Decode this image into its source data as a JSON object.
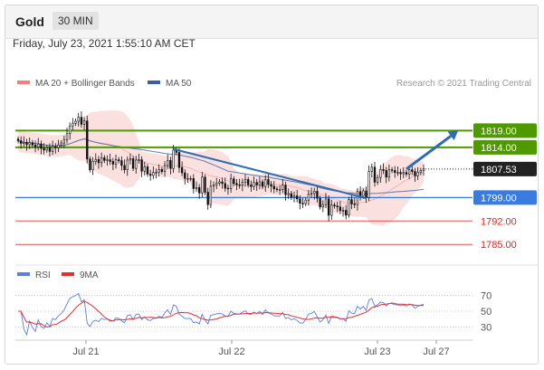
{
  "header": {
    "instrument": "Gold",
    "timeframe": "30 MIN"
  },
  "timestamp": "Friday, July 23, 2021 1:55:10 AM CET",
  "legend": {
    "bollinger": "MA 20 + Bollinger Bands",
    "ma50": "MA 50",
    "copyright": "Research © 2021 Trading Central"
  },
  "rsi_legend": {
    "rsi": "RSI",
    "ma": "9MA"
  },
  "colors": {
    "bollinger": "#f08080",
    "ma50": "#3a5fa3",
    "resistance": "#4f9a00",
    "support_blue": "#3a7be0",
    "support_red": "#e05555",
    "current": "#222222",
    "candle": "#111111",
    "arrow": "#2e6db4",
    "rsi": "#5b7fe0",
    "rsi_ma": "#e03030"
  },
  "chart_data": {
    "type": "candlestick",
    "ylim": [
      1781,
      1831
    ],
    "x_ticks": [
      "Jul 21",
      "Jul 22",
      "Jul 23",
      "Jul 27"
    ],
    "levels": [
      {
        "label": "1819.00",
        "value": 1819.0,
        "kind": "resistance"
      },
      {
        "label": "1814.00",
        "value": 1814.0,
        "kind": "resistance"
      },
      {
        "label": "1807.53",
        "value": 1807.53,
        "kind": "current"
      },
      {
        "label": "1799.00",
        "value": 1799.0,
        "kind": "support_blue"
      },
      {
        "label": "1792.00",
        "value": 1792.0,
        "kind": "support_red"
      },
      {
        "label": "1785.00",
        "value": 1785.0,
        "kind": "support_red"
      }
    ],
    "trendline": [
      {
        "i": 54,
        "v": 1813.5
      },
      {
        "i": 121,
        "v": 1798.8
      }
    ],
    "arrow": {
      "from": {
        "i": 135,
        "v": 1807.53
      },
      "to": {
        "i": 153,
        "v": 1819
      }
    },
    "close": [
      1816,
      1815.2,
      1815.5,
      1814.8,
      1815.4,
      1814.7,
      1814.1,
      1815,
      1813.7,
      1813.2,
      1813.9,
      1812.8,
      1814.2,
      1813.9,
      1814.7,
      1815.3,
      1816.2,
      1818.1,
      1820.4,
      1821.2,
      1821.8,
      1823,
      1820.9,
      1821.9,
      1810.5,
      1807.3,
      1809.8,
      1810.4,
      1809.4,
      1810.9,
      1810.1,
      1810.3,
      1809.8,
      1809,
      1810.3,
      1810,
      1808.6,
      1807.3,
      1810.2,
      1810.6,
      1807.7,
      1810.2,
      1810.3,
      1806.9,
      1808.2,
      1806,
      1805.6,
      1806.5,
      1806.6,
      1807.4,
      1806.8,
      1808.6,
      1810.1,
      1807.7,
      1813.2,
      1812.5,
      1808,
      1806.4,
      1804.7,
      1804.7,
      1804.7,
      1801.7,
      1802,
      1800.4,
      1805.1,
      1800.6,
      1796.9,
      1802.4,
      1802.8,
      1803.3,
      1803.7,
      1803.2,
      1801.8,
      1801.7,
      1804.6,
      1803.2,
      1802.8,
      1802.7,
      1803.6,
      1804.4,
      1802.8,
      1802.3,
      1803.5,
      1802.8,
      1803.7,
      1802.3,
      1804.4,
      1802.9,
      1802.4,
      1801.6,
      1801.4,
      1801.4,
      1802.7,
      1799.9,
      1800.2,
      1799.1,
      1799.5,
      1798.6,
      1797.3,
      1797.2,
      1798.2,
      1800,
      1800.2,
      1800.9,
      1798.8,
      1796.2,
      1796.9,
      1798.6,
      1793.7,
      1796.8,
      1796.5,
      1796.2,
      1795.1,
      1795.2,
      1793.8,
      1798.4,
      1797.1,
      1796.9,
      1800.8,
      1799.4,
      1801,
      1799,
      1806.8,
      1808.1,
      1803.6,
      1805,
      1807.4,
      1807.1,
      1805.1,
      1807.3,
      1807.1,
      1806.5,
      1806.5,
      1806.1,
      1806.5,
      1806,
      1807.3,
      1806.8,
      1805.5,
      1806.5,
      1807.1,
      1807.6
    ],
    "rsi_yticks": [
      70,
      50,
      30
    ],
    "rsi_ylim": [
      20,
      80
    ]
  }
}
